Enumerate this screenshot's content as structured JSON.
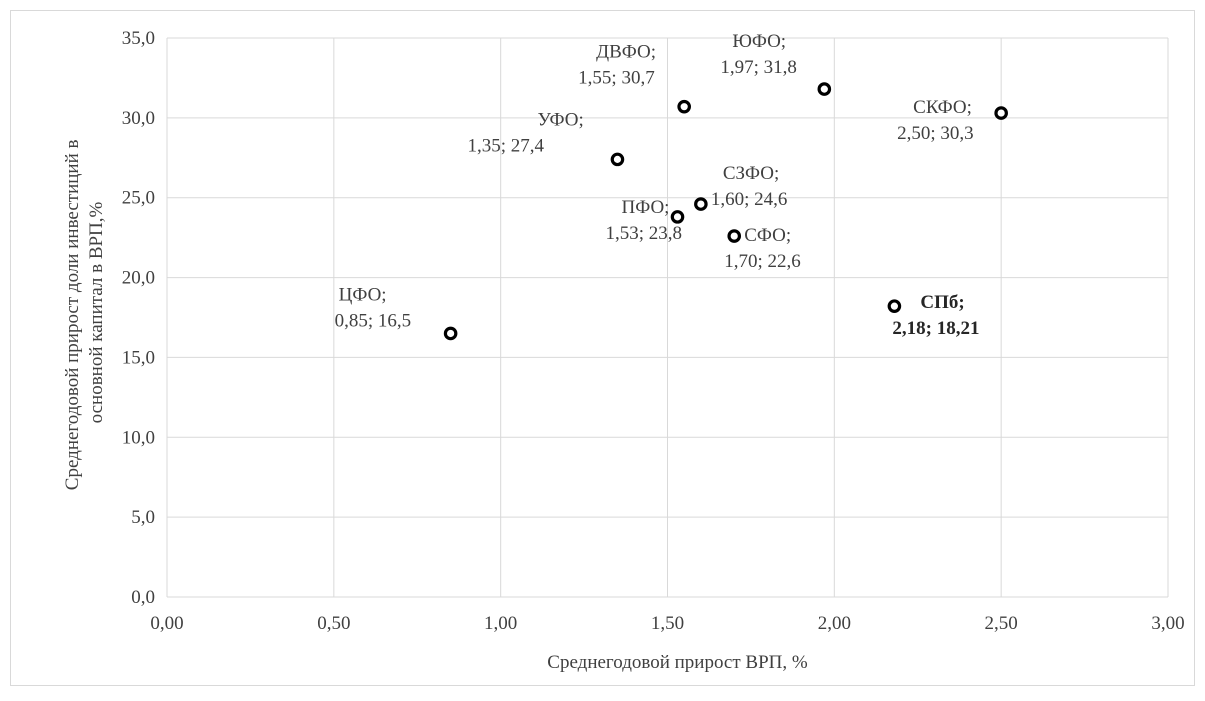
{
  "chart_data": {
    "type": "scatter",
    "title": "",
    "xlabel": "Среднегодовой прирост ВРП, %",
    "ylabel": [
      "Среднегодовой прирост доли инвестиций в",
      "основной капитал в ВРП,%"
    ],
    "xlim": [
      0,
      3
    ],
    "ylim": [
      0,
      35
    ],
    "x_ticks": [
      "0,00",
      "0,50",
      "1,00",
      "1,50",
      "2,00",
      "2,50",
      "3,00"
    ],
    "y_ticks": [
      "0,0",
      "5,0",
      "10,0",
      "15,0",
      "20,0",
      "25,0",
      "30,0",
      "35,0"
    ],
    "grid": true,
    "marker_color": "#000000",
    "grid_color": "#d9d9d9",
    "points": [
      {
        "x": 0.85,
        "y": 16.5,
        "label": [
          "ЦФО;",
          "0,85; 16,5"
        ],
        "bold": false
      },
      {
        "x": 1.35,
        "y": 27.4,
        "label": [
          "УФО;",
          "1,35; 27,4"
        ],
        "bold": false
      },
      {
        "x": 1.53,
        "y": 23.8,
        "label": [
          "ПФО;",
          "1,53; 23,8"
        ],
        "bold": false
      },
      {
        "x": 1.55,
        "y": 30.7,
        "label": [
          "ДВФО;",
          "1,55; 30,7"
        ],
        "bold": false
      },
      {
        "x": 1.6,
        "y": 24.6,
        "label": [
          "СЗФО;",
          "1,60; 24,6"
        ],
        "bold": false
      },
      {
        "x": 1.7,
        "y": 22.6,
        "label": [
          "СФО;",
          "1,70; 22,6"
        ],
        "bold": false
      },
      {
        "x": 1.97,
        "y": 31.8,
        "label": [
          "ЮФО;",
          "1,97; 31,8"
        ],
        "bold": false
      },
      {
        "x": 2.18,
        "y": 18.21,
        "label": [
          "СПб;",
          "2,18; 18,21"
        ],
        "bold": true
      },
      {
        "x": 2.5,
        "y": 30.3,
        "label": [
          "СКФО;",
          "2,50; 30,3"
        ],
        "bold": false
      }
    ]
  }
}
